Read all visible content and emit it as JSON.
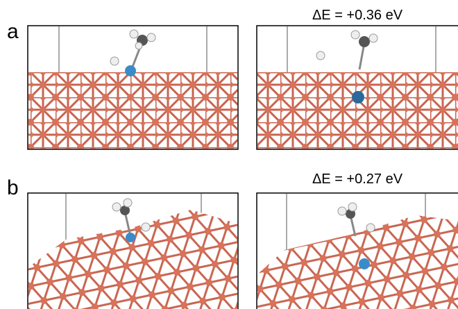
{
  "panels": [
    {
      "label": "a",
      "energy": "ΔE = +0.36 eV"
    },
    {
      "label": "b",
      "energy": "ΔE = +0.27 eV"
    }
  ]
}
